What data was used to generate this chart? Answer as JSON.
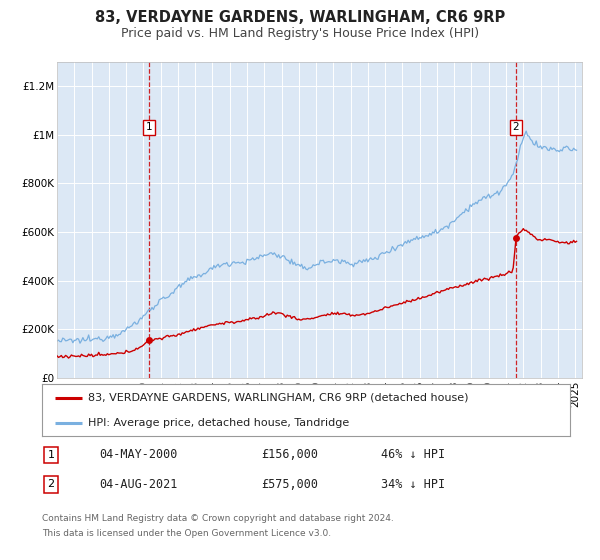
{
  "title": "83, VERDAYNE GARDENS, WARLINGHAM, CR6 9RP",
  "subtitle": "Price paid vs. HM Land Registry's House Price Index (HPI)",
  "background_color": "#ffffff",
  "plot_bg_color": "#dce8f5",
  "grid_color": "#ffffff",
  "ylim": [
    0,
    1300000
  ],
  "yticks": [
    0,
    200000,
    400000,
    600000,
    800000,
    1000000,
    1200000
  ],
  "ytick_labels": [
    "£0",
    "£200K",
    "£400K",
    "£600K",
    "£800K",
    "£1M",
    "£1.2M"
  ],
  "xlim_start": 1995.0,
  "xlim_end": 2025.4,
  "transaction1_x": 2000.33,
  "transaction1_y": 156000,
  "transaction2_x": 2021.58,
  "transaction2_y": 575000,
  "hpi_color": "#7ab0e0",
  "price_color": "#cc0000",
  "marker_color": "#cc0000",
  "vline_color": "#cc0000",
  "legend_label_price": "83, VERDAYNE GARDENS, WARLINGHAM, CR6 9RP (detached house)",
  "legend_label_hpi": "HPI: Average price, detached house, Tandridge",
  "table_row1": [
    "1",
    "04-MAY-2000",
    "£156,000",
    "46% ↓ HPI"
  ],
  "table_row2": [
    "2",
    "04-AUG-2021",
    "£575,000",
    "34% ↓ HPI"
  ],
  "footnote1": "Contains HM Land Registry data © Crown copyright and database right 2024.",
  "footnote2": "This data is licensed under the Open Government Licence v3.0.",
  "title_fontsize": 10.5,
  "subtitle_fontsize": 9,
  "tick_fontsize": 7.5,
  "legend_fontsize": 8,
  "table_fontsize": 8.5,
  "footnote_fontsize": 6.5
}
